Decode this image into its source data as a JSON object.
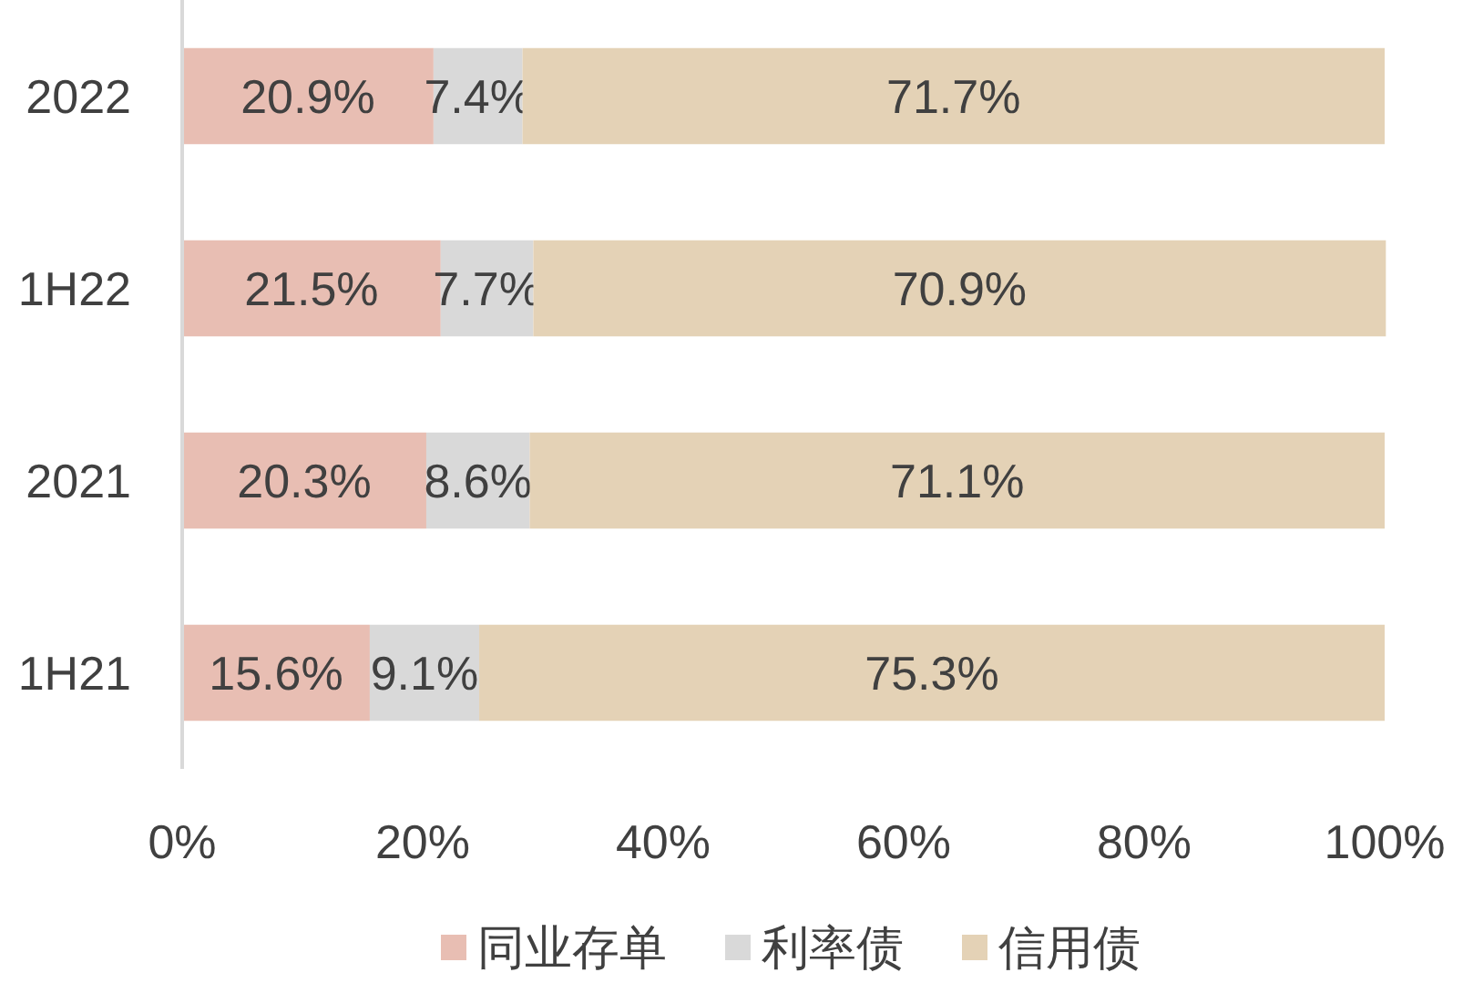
{
  "chart_data": {
    "type": "bar",
    "orientation": "horizontal",
    "stacked": true,
    "categories": [
      "2022",
      "1H22",
      "2021",
      "1H21"
    ],
    "series": [
      {
        "name": "同业存单",
        "color": "#e8beb3",
        "values": [
          20.9,
          21.5,
          20.3,
          15.6
        ],
        "value_labels": [
          "20.9%",
          "21.5%",
          "20.3%",
          "15.6%"
        ]
      },
      {
        "name": "利率债",
        "color": "#d9d9d9",
        "values": [
          7.4,
          7.7,
          8.6,
          9.1
        ],
        "value_labels": [
          "7.4%",
          "7.7%",
          "8.6%",
          "9.1%"
        ]
      },
      {
        "name": "信用债",
        "color": "#e4d2b6",
        "values": [
          71.7,
          70.9,
          71.1,
          75.3
        ],
        "value_labels": [
          "71.7%",
          "70.9%",
          "71.1%",
          "75.3%"
        ]
      }
    ],
    "xlim": [
      0,
      100
    ],
    "xticks": [
      {
        "value": 0,
        "label": "0%"
      },
      {
        "value": 20,
        "label": "20%"
      },
      {
        "value": 40,
        "label": "40%"
      },
      {
        "value": 60,
        "label": "60%"
      },
      {
        "value": 80,
        "label": "80%"
      },
      {
        "value": 100,
        "label": "100%"
      }
    ],
    "legend": "bottom",
    "grid": false
  }
}
